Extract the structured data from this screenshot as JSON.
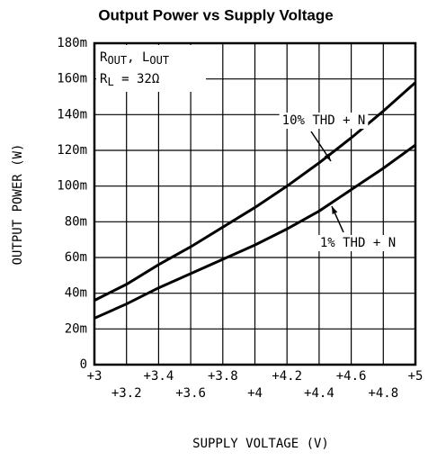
{
  "chart_data": {
    "type": "line",
    "title": "Output Power vs Supply Voltage",
    "xlabel": "SUPPLY VOLTAGE (V)",
    "ylabel": "OUTPUT POWER (W)",
    "x": [
      3,
      3.2,
      3.4,
      3.6,
      3.8,
      4,
      4.2,
      4.4,
      4.6,
      4.8,
      5
    ],
    "series": [
      {
        "name": "10% THD + N",
        "color": "#000000",
        "values": [
          0.036,
          0.045,
          0.056,
          0.066,
          0.077,
          0.088,
          0.1,
          0.113,
          0.127,
          0.142,
          0.158
        ]
      },
      {
        "name": "1% THD + N",
        "color": "#000000",
        "values": [
          0.026,
          0.034,
          0.043,
          0.051,
          0.059,
          0.067,
          0.076,
          0.086,
          0.098,
          0.11,
          0.123
        ]
      }
    ],
    "conditions": {
      "line1": [
        "R",
        "OUT",
        ", L",
        "OUT"
      ],
      "line2": [
        "R",
        "L",
        "  =  32Ω"
      ]
    },
    "xlim": [
      3,
      5
    ],
    "xticks": [
      {
        "value": 3,
        "label": "+3"
      },
      {
        "value": 3.2,
        "label": "+3.2"
      },
      {
        "value": 3.4,
        "label": "+3.4"
      },
      {
        "value": 3.6,
        "label": "+3.6"
      },
      {
        "value": 3.8,
        "label": "+3.8"
      },
      {
        "value": 4,
        "label": "+4"
      },
      {
        "value": 4.2,
        "label": "+4.2"
      },
      {
        "value": 4.4,
        "label": "+4.4"
      },
      {
        "value": 4.6,
        "label": "+4.6"
      },
      {
        "value": 4.8,
        "label": "+4.8"
      },
      {
        "value": 5,
        "label": "+5"
      }
    ],
    "ylim": [
      0,
      0.18
    ],
    "yticks": [
      0,
      {
        "value": 0.02,
        "label": "20m"
      },
      {
        "value": 0.04,
        "label": "40m"
      },
      {
        "value": 0.06,
        "label": "60m"
      },
      {
        "value": 0.08,
        "label": "80m"
      },
      {
        "value": 0.1,
        "label": "100m"
      },
      {
        "value": 0.12,
        "label": "120m"
      },
      {
        "value": 0.14,
        "label": "140m"
      },
      {
        "value": 0.16,
        "label": "160m"
      },
      {
        "value": 0.18,
        "label": "180m"
      }
    ],
    "grid": true
  }
}
